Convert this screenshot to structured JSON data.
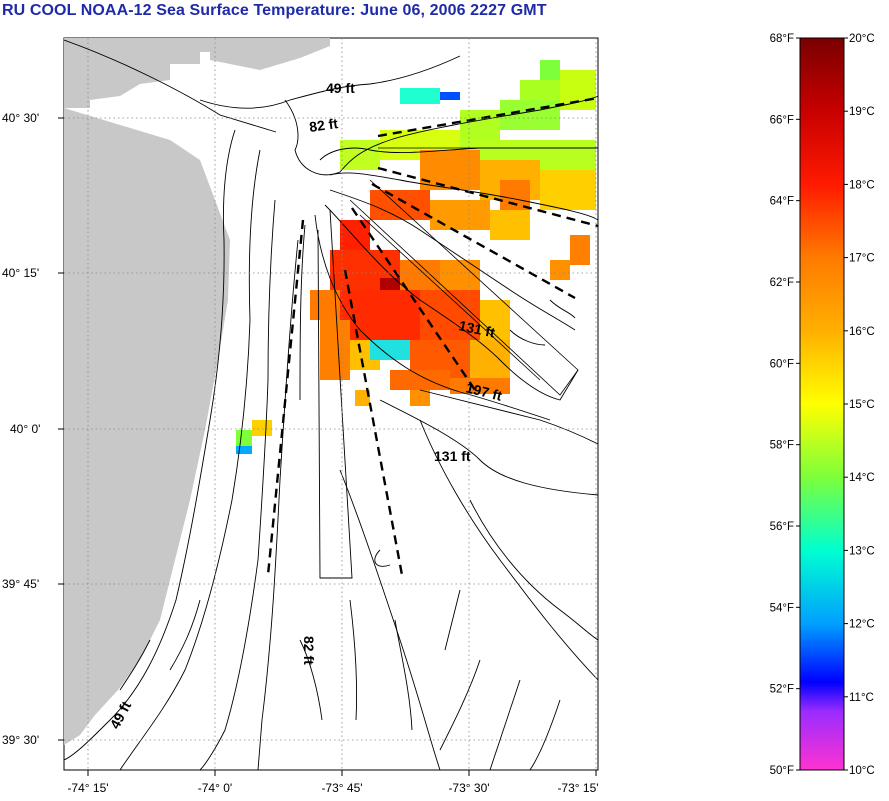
{
  "header": {
    "title": "RU COOL  NOAA-12  Sea Surface Temperature:  June 06, 2006 2227 GMT"
  },
  "map": {
    "lat_labels": [
      "40° 30'",
      "40° 15'",
      "40° 0'",
      "39° 45'",
      "39° 30'"
    ],
    "lon_labels": [
      "-74° 15'",
      "-74° 0'",
      "-73° 45'",
      "-73° 30'",
      "-73° 15'"
    ],
    "depth_labels": [
      "49 ft",
      "82 ft",
      "131 ft",
      "197 ft",
      "131 ft",
      "82 ft",
      "49 ft"
    ],
    "colors": {
      "land": "#c8c8c8",
      "grid": "#888888",
      "contour": "#000000"
    }
  },
  "colorbar": {
    "f_labels": [
      "68°F",
      "66°F",
      "64°F",
      "62°F",
      "60°F",
      "58°F",
      "56°F",
      "54°F",
      "52°F",
      "50°F"
    ],
    "c_labels": [
      "20°C",
      "19°C",
      "18°C",
      "17°C",
      "16°C",
      "15°C",
      "14°C",
      "13°C",
      "12°C",
      "11°C",
      "10°C"
    ],
    "range_c": [
      10,
      20
    ],
    "range_f": [
      50,
      68
    ]
  }
}
